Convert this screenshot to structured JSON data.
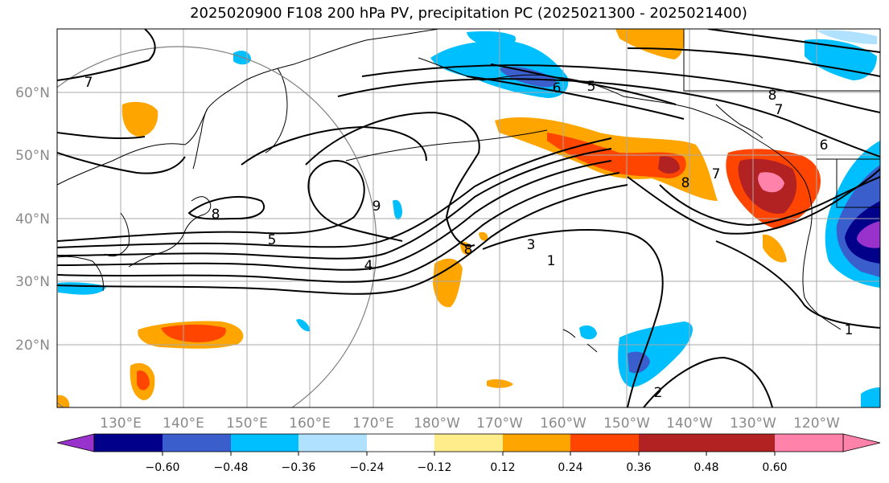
{
  "title": "2025020900 F108 200 hPa PV, precipitation PC (2025021300 - 2025021400)",
  "map": {
    "lat_labels": [
      "60°N",
      "50°N",
      "40°N",
      "30°N",
      "20°N"
    ],
    "lon_labels": [
      "130°E",
      "140°E",
      "150°E",
      "160°E",
      "170°E",
      "180°W",
      "170°W",
      "160°W",
      "150°W",
      "140°W",
      "130°W",
      "120°W"
    ]
  },
  "contour_labels": [
    "7",
    "5",
    "6",
    "8",
    "7",
    "6",
    "8",
    "9",
    "5",
    "8",
    "4",
    "3",
    "1",
    "7",
    "8",
    "1",
    "2"
  ],
  "colorbar": {
    "ticks": [
      "−0.60",
      "−0.48",
      "−0.36",
      "−0.24",
      "−0.12",
      "0.12",
      "0.24",
      "0.36",
      "0.48",
      "0.60"
    ],
    "colors": [
      "#9932cc",
      "#00008b",
      "#3a5fcd",
      "#00bfff",
      "#b0e2ff",
      "#ffffff",
      "#ffec8b",
      "#ffa500",
      "#ff4500",
      "#b22222",
      "#ff82ab"
    ]
  },
  "colors": {
    "grid": "#a9a9a9",
    "coast": "#000000",
    "circle": "#808080"
  }
}
